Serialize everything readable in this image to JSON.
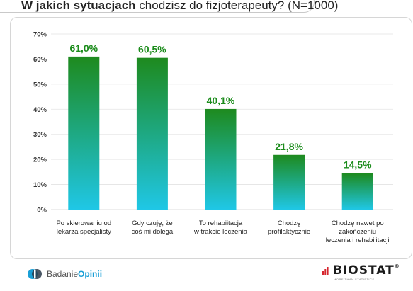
{
  "title": {
    "bold": "W jakich sytuacjach",
    "rest": " chodzisz do fizjoterapeuty? (N=1000)"
  },
  "chart_data": {
    "type": "bar",
    "categories": [
      [
        "Po skierowaniu od",
        "lekarza specjalisty"
      ],
      [
        "Gdy czuję, że",
        "coś mi dolega"
      ],
      [
        "To rehabiitacja",
        "w trakcie leczenia"
      ],
      [
        "Chodzę",
        "profilaktycznie"
      ],
      [
        "Chodzę nawet po",
        "zakończeniu",
        "leczenia i rehabilitacji"
      ]
    ],
    "values": [
      61.0,
      60.5,
      40.1,
      21.8,
      14.5
    ],
    "data_labels": [
      "61,0%",
      "60,5%",
      "40,1%",
      "21,8%",
      "14,5%"
    ],
    "yticks": [
      "0%",
      "10%",
      "20%",
      "30%",
      "40%",
      "50%",
      "60%",
      "70%"
    ],
    "ylim": [
      0,
      70
    ],
    "grid": true,
    "colors": {
      "bar_top": "#1e8a1e",
      "bar_bottom": "#1fc7e6",
      "label": "#1c8c1c",
      "grid": "#e3e3e3"
    }
  },
  "logos": {
    "left_prefix": "Badanie",
    "left_strong": "Opinii",
    "right_brand": "BIOSTAT",
    "right_reg": "®",
    "right_tag": "MORE THAN STATISTICS"
  }
}
